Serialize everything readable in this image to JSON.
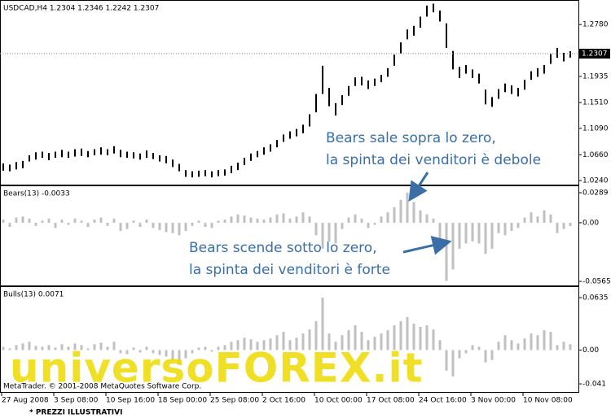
{
  "chart_data": [
    {
      "type": "ohlc",
      "title": "USDCAD,H4  1.2304 1.2346 1.2242 1.2307",
      "color": "#000000",
      "ylim": [
        1.016,
        1.3154
      ],
      "yticks": [
        {
          "value": 1.278,
          "label": "1.2780"
        },
        1.1935,
        {
          "value": 1.151,
          "label": "1.1510"
        },
        {
          "value": 1.109,
          "label": "1.1090"
        },
        {
          "value": 1.066,
          "label": "1.0660"
        },
        {
          "value": 1.024,
          "label": "1.0240"
        }
      ],
      "current_price": 1.2307,
      "high": [
        1.052,
        1.05,
        1.054,
        1.056,
        1.065,
        1.07,
        1.071,
        1.069,
        1.071,
        1.074,
        1.071,
        1.075,
        1.076,
        1.072,
        1.075,
        1.078,
        1.075,
        1.08,
        1.074,
        1.071,
        1.07,
        1.068,
        1.073,
        1.069,
        1.065,
        1.064,
        1.058,
        1.051,
        1.041,
        1.039,
        1.04,
        1.041,
        1.039,
        1.041,
        1.042,
        1.048,
        1.053,
        1.061,
        1.068,
        1.072,
        1.078,
        1.083,
        1.09,
        1.099,
        1.104,
        1.108,
        1.115,
        1.132,
        1.165,
        1.211,
        1.175,
        1.15,
        1.163,
        1.178,
        1.192,
        1.193,
        1.187,
        1.19,
        1.196,
        1.207,
        1.229,
        1.249,
        1.27,
        1.276,
        1.291,
        1.309,
        1.312,
        1.301,
        1.28,
        1.235,
        1.209,
        1.212,
        1.205,
        1.198,
        1.172,
        1.16,
        1.173,
        1.182,
        1.179,
        1.175,
        1.188,
        1.202,
        1.207,
        1.212,
        1.23,
        1.24,
        1.232,
        1.2346
      ],
      "low": [
        1.04,
        1.039,
        1.042,
        1.044,
        1.055,
        1.058,
        1.061,
        1.057,
        1.061,
        1.062,
        1.061,
        1.063,
        1.064,
        1.062,
        1.065,
        1.066,
        1.065,
        1.068,
        1.062,
        1.061,
        1.06,
        1.058,
        1.061,
        1.059,
        1.055,
        1.052,
        1.046,
        1.039,
        1.03,
        1.029,
        1.03,
        1.031,
        1.029,
        1.031,
        1.032,
        1.036,
        1.041,
        1.049,
        1.056,
        1.062,
        1.066,
        1.071,
        1.078,
        1.087,
        1.092,
        1.096,
        1.101,
        1.112,
        1.135,
        1.165,
        1.145,
        1.13,
        1.147,
        1.162,
        1.178,
        1.179,
        1.173,
        1.178,
        1.184,
        1.193,
        1.211,
        1.231,
        1.254,
        1.26,
        1.273,
        1.291,
        1.298,
        1.283,
        1.24,
        1.205,
        1.191,
        1.198,
        1.191,
        1.182,
        1.148,
        1.144,
        1.157,
        1.168,
        1.165,
        1.161,
        1.172,
        1.188,
        1.193,
        1.198,
        1.214,
        1.224,
        1.218,
        1.2242
      ]
    },
    {
      "type": "histogram",
      "title": "Bears(13) -0.0033",
      "color": "#c0c0c0",
      "ylim": [
        -0.0612,
        0.0344
      ],
      "yticks": [
        0.0289,
        {
          "value": 0,
          "label": "0.00"
        },
        -0.0565
      ],
      "values": [
        0.003,
        -0.004,
        0.005,
        0.006,
        0.004,
        -0.003,
        0.002,
        0.004,
        -0.005,
        0.003,
        -0.002,
        0.004,
        0.002,
        -0.004,
        0.003,
        0.005,
        -0.003,
        0.004,
        -0.008,
        -0.006,
        0.002,
        -0.004,
        0.003,
        -0.005,
        -0.007,
        -0.009,
        -0.01,
        -0.012,
        -0.008,
        -0.003,
        0.002,
        -0.004,
        -0.005,
        0.002,
        0.003,
        0.006,
        0.008,
        0.007,
        0.005,
        0.004,
        0.003,
        0.005,
        0.008,
        0.009,
        0.004,
        0.006,
        0.01,
        0.006,
        -0.012,
        -0.025,
        -0.018,
        -0.02,
        -0.006,
        0.005,
        0.008,
        0.004,
        -0.005,
        -0.002,
        0.006,
        0.01,
        0.015,
        0.022,
        0.029,
        0.02,
        0.012,
        0.008,
        0.004,
        -0.015,
        -0.056,
        -0.045,
        -0.025,
        -0.02,
        -0.018,
        -0.02,
        -0.03,
        -0.025,
        -0.01,
        -0.012,
        -0.008,
        -0.005,
        0.005,
        0.01,
        0.006,
        0.012,
        0.008,
        -0.01,
        -0.006,
        -0.0033
      ]
    },
    {
      "type": "histogram",
      "title": "Bulls(13) 0.0071",
      "color": "#c0c0c0",
      "ylim": [
        -0.0518,
        0.0753
      ],
      "yticks": [
        0.0635,
        {
          "value": 0,
          "label": "0.00"
        },
        -0.041
      ],
      "values": [
        0.004,
        0.002,
        0.006,
        0.008,
        0.01,
        0.005,
        0.004,
        0.006,
        0.003,
        0.007,
        0.004,
        0.008,
        0.006,
        0.002,
        0.007,
        0.009,
        0.004,
        0.01,
        -0.004,
        -0.005,
        0.003,
        -0.003,
        0.004,
        -0.004,
        -0.006,
        -0.008,
        -0.012,
        -0.018,
        -0.01,
        -0.004,
        0.003,
        0.004,
        -0.002,
        0.004,
        0.006,
        0.01,
        0.012,
        0.015,
        0.013,
        0.01,
        0.012,
        0.014,
        0.018,
        0.022,
        0.012,
        0.015,
        0.02,
        0.025,
        0.035,
        0.0635,
        0.02,
        0.01,
        0.018,
        0.024,
        0.03,
        0.022,
        0.012,
        0.016,
        0.02,
        0.024,
        0.03,
        0.035,
        0.04,
        0.032,
        0.028,
        0.03,
        0.025,
        0.012,
        -0.025,
        -0.032,
        -0.01,
        -0.004,
        0.006,
        0.004,
        -0.015,
        -0.012,
        0.01,
        0.018,
        0.012,
        0.008,
        0.014,
        0.02,
        0.018,
        0.024,
        0.022,
        0.006,
        0.01,
        0.0071
      ],
      "categories": [
        "27 Aug 2008",
        null,
        null,
        null,
        null,
        null,
        null,
        null,
        "3 Sep 08:00",
        null,
        null,
        null,
        null,
        null,
        null,
        null,
        "10 Sep 16:00",
        null,
        null,
        null,
        null,
        null,
        null,
        null,
        "18 Sep 00:00",
        null,
        null,
        null,
        null,
        null,
        null,
        null,
        "25 Sep 08:00",
        null,
        null,
        null,
        null,
        null,
        null,
        null,
        "2 Oct 16:00",
        null,
        null,
        null,
        null,
        null,
        null,
        null,
        "10 Oct 00:00",
        null,
        null,
        null,
        null,
        null,
        null,
        null,
        "17 Oct 08:00",
        null,
        null,
        null,
        null,
        null,
        null,
        null,
        "24 Oct 16:00",
        null,
        null,
        null,
        null,
        null,
        null,
        null,
        "3 Nov 00:00",
        null,
        null,
        null,
        null,
        null,
        null,
        null,
        "10 Nov 08:00",
        null,
        null,
        null,
        null,
        null,
        null,
        null
      ]
    }
  ],
  "annotations": [
    {
      "lines": [
        "Bears sale sopra lo zero,",
        "la spinta dei venditori è debole"
      ]
    },
    {
      "lines": [
        "Bears scende sotto lo zero,",
        "la spinta dei venditori è forte"
      ]
    }
  ],
  "watermark": "universoFOREX.it",
  "copyright": "MetaTrader. © 2001-2008 MetaQuotes Software Corp.",
  "footnote": "* PREZZI ILLUSTRATIVI"
}
